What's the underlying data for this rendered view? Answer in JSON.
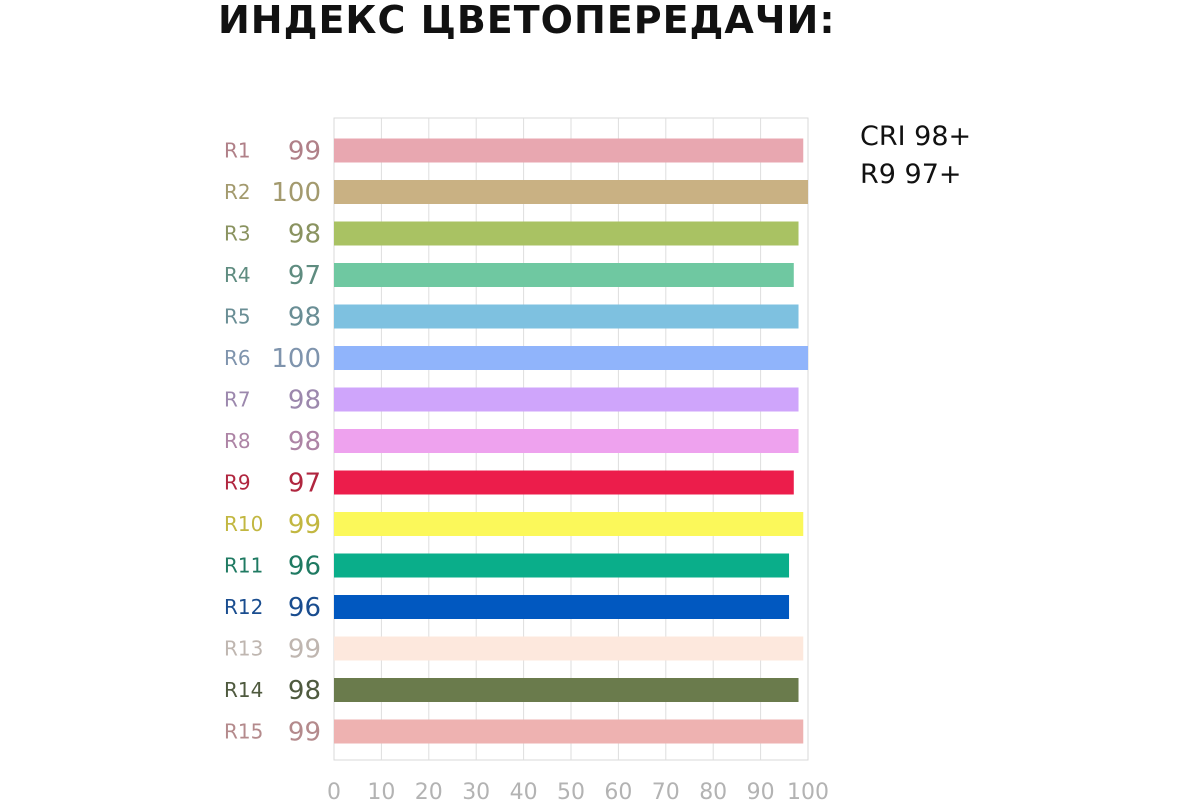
{
  "title": "ИНДЕКС ЦВЕТОПЕРЕДАЧИ:",
  "summary": {
    "line1": "CRI 98+",
    "line2": "R9 97+"
  },
  "chart_data": {
    "type": "bar",
    "orientation": "horizontal",
    "title": "ИНДЕКС ЦВЕТОПЕРЕДАЧИ:",
    "xlabel": "",
    "ylabel": "",
    "xlim": [
      0,
      100
    ],
    "xticks": [
      0,
      10,
      20,
      30,
      40,
      50,
      60,
      70,
      80,
      90,
      100
    ],
    "grid": true,
    "value_labels_position": "left",
    "categories": [
      "R1",
      "R2",
      "R3",
      "R4",
      "R5",
      "R6",
      "R7",
      "R8",
      "R9",
      "R10",
      "R11",
      "R12",
      "R13",
      "R14",
      "R15"
    ],
    "values": [
      99,
      100,
      98,
      97,
      98,
      100,
      98,
      98,
      97,
      99,
      96,
      96,
      99,
      98,
      99
    ],
    "bar_colors": [
      "#e8a7b0",
      "#c9b183",
      "#a9c263",
      "#6fc8a1",
      "#7ec1e0",
      "#90b4fb",
      "#cfa5fb",
      "#eea2ee",
      "#ec1d4b",
      "#fbf85a",
      "#0aae8a",
      "#0158c0",
      "#fde8dd",
      "#6a7b4c",
      "#eeb2b1"
    ],
    "label_colors": [
      "#b08088",
      "#a39a6e",
      "#8a9360",
      "#5f8c80",
      "#6a8e95",
      "#7f94ad",
      "#9c88ad",
      "#ad84a5",
      "#b0263f",
      "#c2b741",
      "#1f7a62",
      "#1a4d8f",
      "#bfb6b0",
      "#4f5a3f",
      "#b48a8c"
    ]
  }
}
